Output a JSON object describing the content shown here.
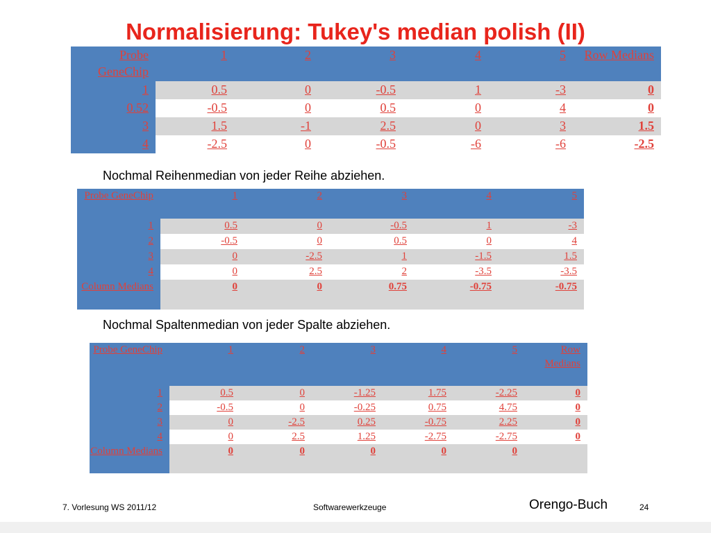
{
  "title": "Normalisierung: Tukey's median polish (II)",
  "table1": {
    "header": [
      "Probe GeneChip",
      "1",
      "2",
      "3",
      "4",
      "5",
      "Row Medians"
    ],
    "rows": [
      [
        "1",
        "0.5",
        "0",
        "-0.5",
        "1",
        "-3",
        "0"
      ],
      [
        "0.52",
        "-0.5",
        "0",
        "0.5",
        "0",
        "4",
        "0"
      ],
      [
        "3",
        "1.5",
        "-1",
        "2.5",
        "0",
        "3",
        "1.5"
      ],
      [
        "4",
        "-2.5",
        "0",
        "-0.5",
        "-6",
        "-6",
        "-2.5"
      ]
    ]
  },
  "note1": "Nochmal Reihenmedian von jeder Reihe abziehen.",
  "table2": {
    "header": [
      "Probe GeneChip",
      "1",
      "2",
      "3",
      "4",
      "5"
    ],
    "rows": [
      [
        "1",
        "0.5",
        "0",
        "-0.5",
        "1",
        "-3"
      ],
      [
        "2",
        "-0.5",
        "0",
        "0.5",
        "0",
        "4"
      ],
      [
        "3",
        "0",
        "-2.5",
        "1",
        "-1.5",
        "1.5"
      ],
      [
        "4",
        "0",
        "2.5",
        "2",
        "-3.5",
        "-3.5"
      ]
    ],
    "footer": [
      "Column Medians",
      "0",
      "0",
      "0.75",
      "-0.75",
      "-0.75"
    ]
  },
  "note2": "Nochmal Spaltenmedian von jeder Spalte abziehen.",
  "table3": {
    "header": [
      "Probe GeneChip",
      "1",
      "2",
      "3",
      "4",
      "5",
      "Row Medians"
    ],
    "rows": [
      [
        "1",
        "0.5",
        "0",
        "-1.25",
        "1.75",
        "-2.25",
        "0"
      ],
      [
        "2",
        "-0.5",
        "0",
        "-0.25",
        "0.75",
        "4.75",
        "0"
      ],
      [
        "3",
        "0",
        "-2.5",
        "0.25",
        "-0.75",
        "2.25",
        "0"
      ],
      [
        "4",
        "0",
        "2.5",
        "1.25",
        "-2.75",
        "-2.75",
        "0"
      ]
    ],
    "footer": [
      "Column Medians",
      "0",
      "0",
      "0",
      "0",
      "0",
      ""
    ]
  },
  "footer": {
    "left": "7. Vorlesung WS 2011/12",
    "center": "Softwarewerkzeuge",
    "right": "Orengo-Buch",
    "page": "24"
  }
}
